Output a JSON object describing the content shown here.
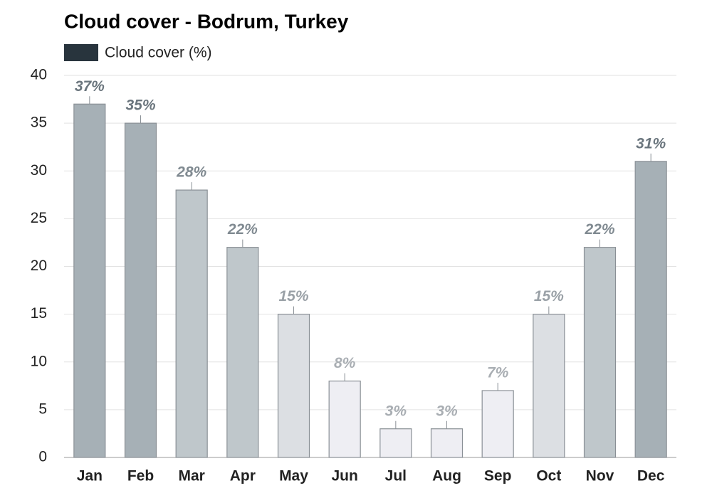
{
  "chart_data": {
    "type": "bar",
    "title": "Cloud cover - Bodrum, Turkey",
    "series": [
      {
        "name": "Cloud cover (%)",
        "color": "#28343d",
        "values": [
          37,
          35,
          28,
          22,
          15,
          8,
          3,
          3,
          7,
          15,
          22,
          31
        ],
        "value_labels": [
          "37%",
          "35%",
          "28%",
          "22%",
          "15%",
          "8%",
          "3%",
          "3%",
          "7%",
          "15%",
          "22%",
          "31%"
        ]
      }
    ],
    "categories": [
      "Jan",
      "Feb",
      "Mar",
      "Apr",
      "May",
      "Jun",
      "Jul",
      "Aug",
      "Sep",
      "Oct",
      "Nov",
      "Dec"
    ],
    "colors": [
      "#a6b0b6",
      "#a6b0b6",
      "#bfc7cb",
      "#bfc7cb",
      "#dcdfe3",
      "#eeeef3",
      "#eeeef3",
      "#eeeef3",
      "#eeeef3",
      "#dcdfe3",
      "#bfc7cb",
      "#a6b0b6"
    ],
    "label_colors": [
      "#6a757d",
      "#6a757d",
      "#808a91",
      "#808a91",
      "#9aa1a7",
      "#a9aeb3",
      "#a9aeb3",
      "#a9aeb3",
      "#a9aeb3",
      "#9aa1a7",
      "#808a91",
      "#6a757d"
    ],
    "ylim": [
      0,
      40
    ],
    "yticks": [
      0,
      5,
      10,
      15,
      20,
      25,
      30,
      35,
      40
    ],
    "grid": true
  }
}
